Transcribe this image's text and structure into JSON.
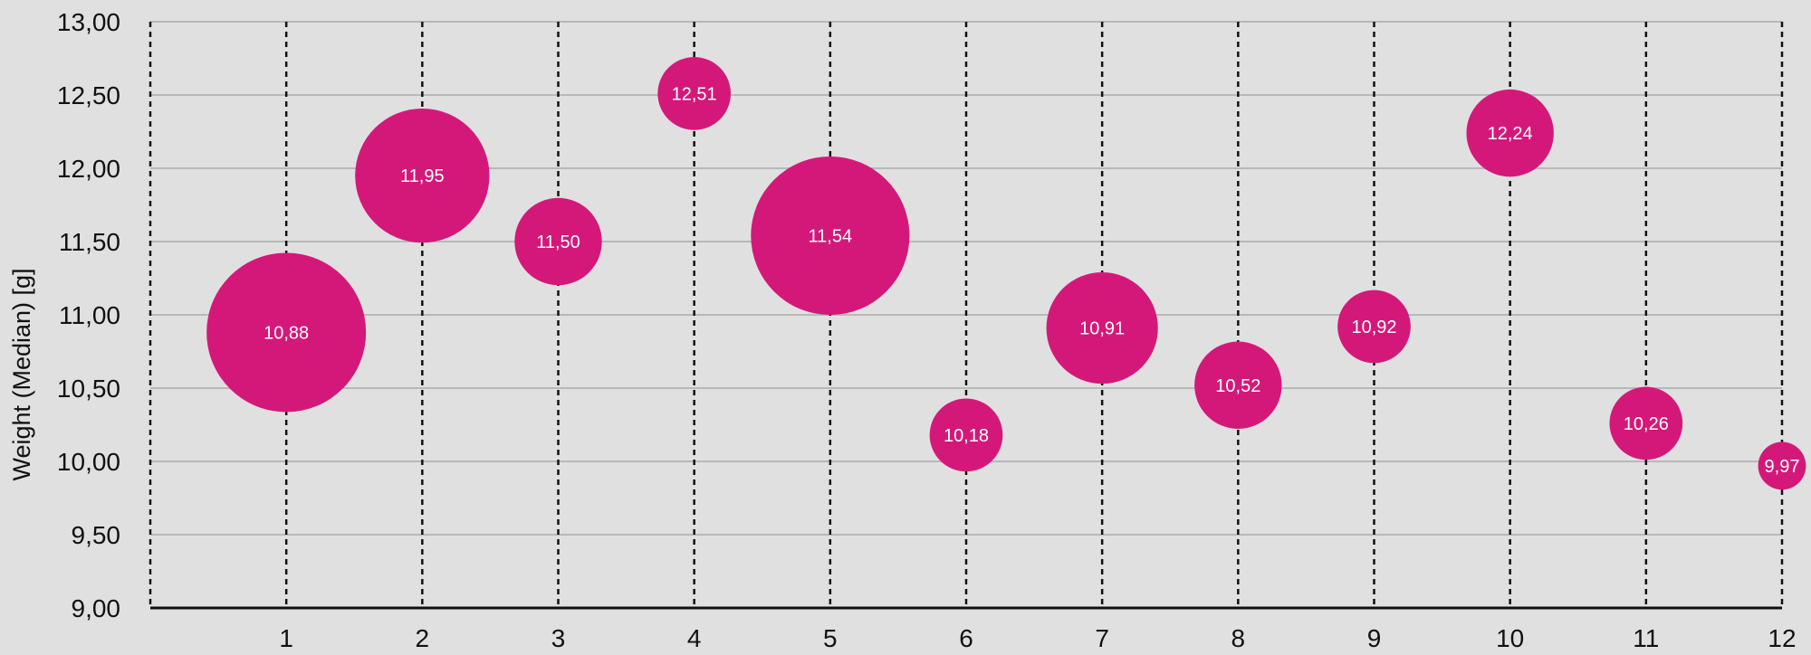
{
  "chart_data": {
    "type": "bubble",
    "title": "",
    "xlabel": "",
    "ylabel": "Weight (Median) [g]",
    "x_ticks": [
      "1",
      "2",
      "3",
      "4",
      "5",
      "6",
      "7",
      "8",
      "9",
      "10",
      "11",
      "12"
    ],
    "y_ticks": [
      "9,00",
      "9,50",
      "10,00",
      "10,50",
      "11,00",
      "11,50",
      "12,00",
      "12,50",
      "13,00"
    ],
    "ylim": [
      9,
      13
    ],
    "xlim": [
      0,
      12
    ],
    "grid": {
      "horizontal": true,
      "vertical": "dashed"
    },
    "color": "#d4187a",
    "points": [
      {
        "x": 1,
        "y": 10.88,
        "label": "10,88",
        "size": 1.0
      },
      {
        "x": 2,
        "y": 11.95,
        "label": "11,95",
        "size": 0.71
      },
      {
        "x": 3,
        "y": 11.5,
        "label": "11,50",
        "size": 0.3
      },
      {
        "x": 4,
        "y": 12.51,
        "label": "12,51",
        "size": 0.21
      },
      {
        "x": 5,
        "y": 11.54,
        "label": "11,54",
        "size": 0.99
      },
      {
        "x": 6,
        "y": 10.18,
        "label": "10,18",
        "size": 0.21
      },
      {
        "x": 7,
        "y": 10.91,
        "label": "10,91",
        "size": 0.49
      },
      {
        "x": 8,
        "y": 10.52,
        "label": "10,52",
        "size": 0.3
      },
      {
        "x": 9,
        "y": 10.92,
        "label": "10,92",
        "size": 0.21
      },
      {
        "x": 10,
        "y": 12.24,
        "label": "12,24",
        "size": 0.3
      },
      {
        "x": 11,
        "y": 10.26,
        "label": "10,26",
        "size": 0.21
      },
      {
        "x": 12,
        "y": 9.97,
        "label": "9,97",
        "size": 0.09
      }
    ]
  }
}
